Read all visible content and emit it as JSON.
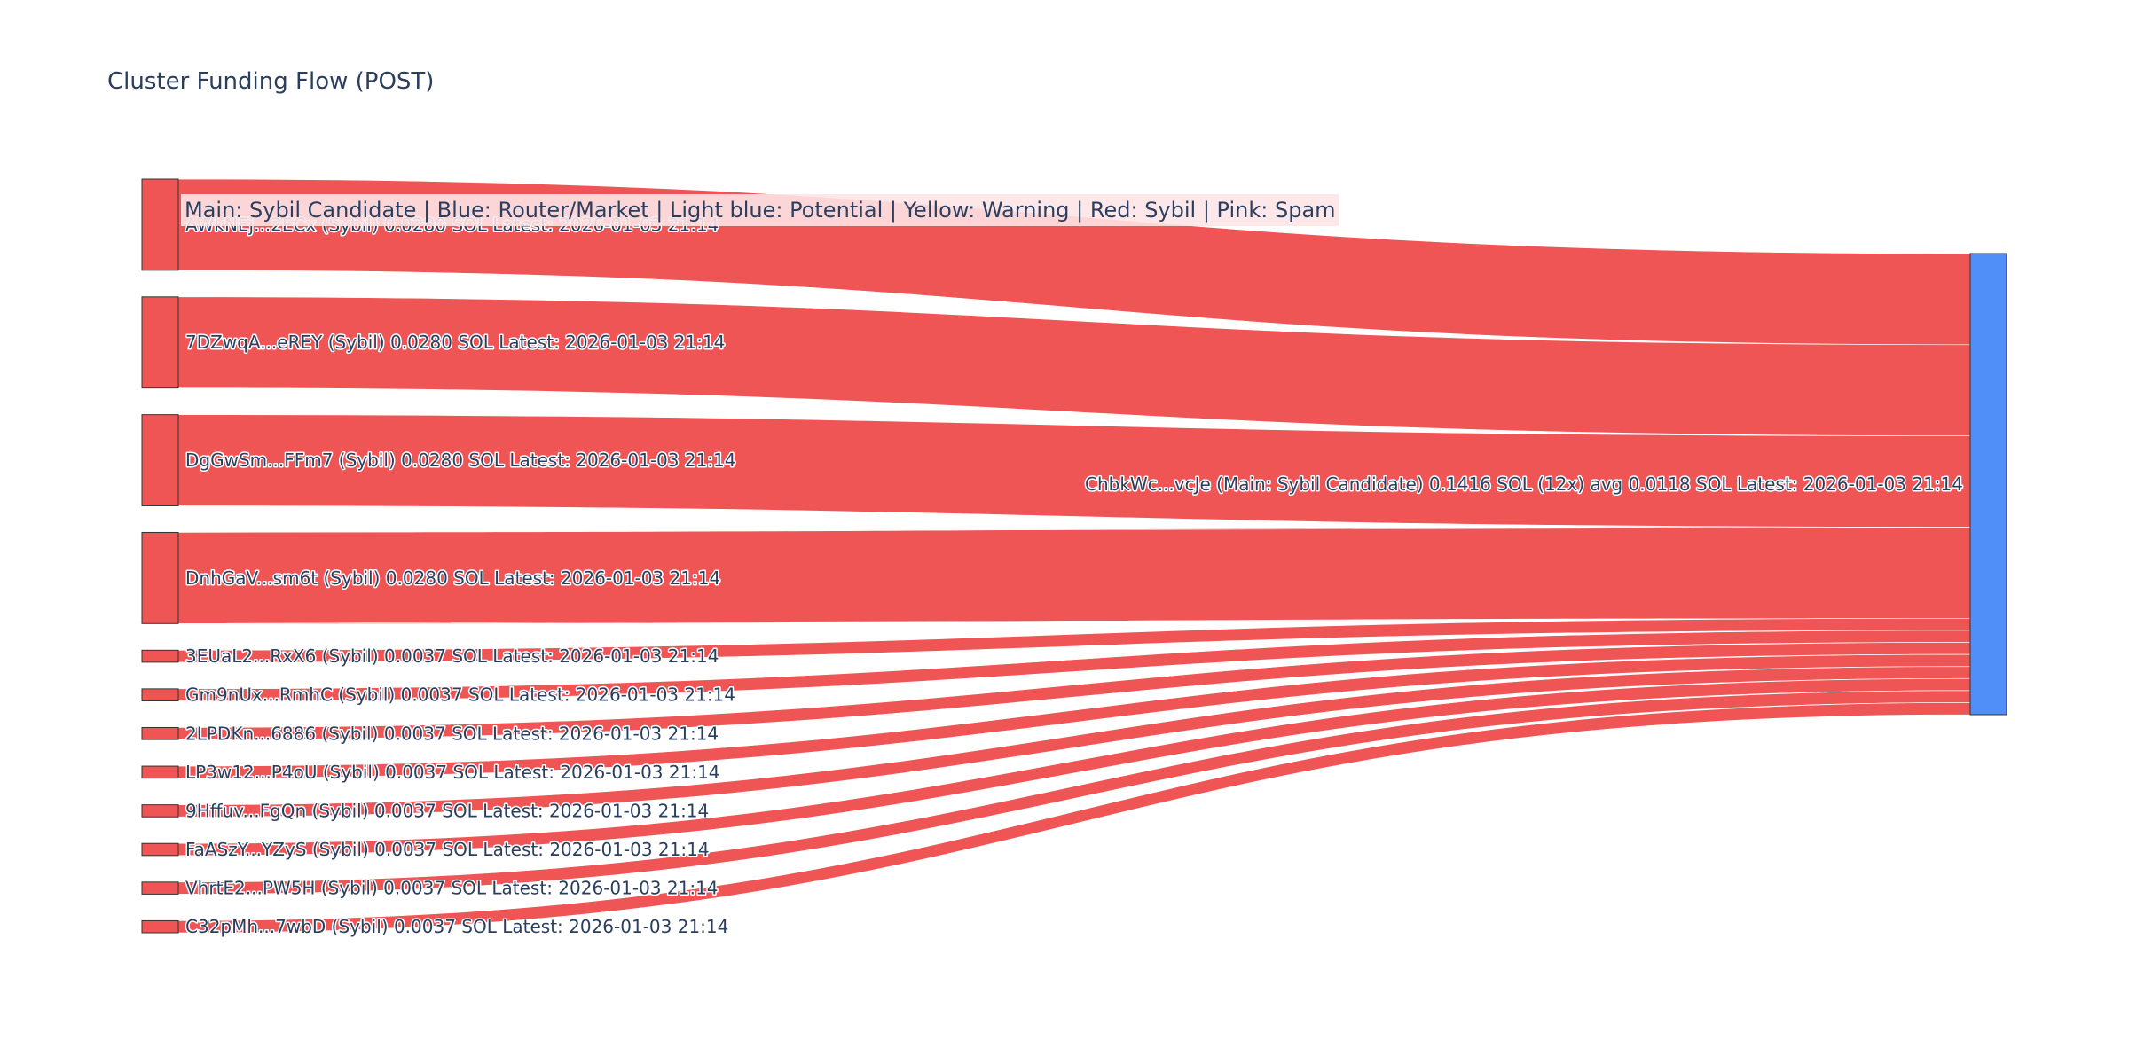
{
  "title": "Cluster Funding Flow (POST)",
  "legend": "Main: Sybil Candidate  |  Blue: Router/Market | Light blue: Potential | Yellow: Warning | Red: Sybil | Pink: Spam",
  "colors": {
    "link": "#ef5555",
    "source_node": "#ef5555",
    "target_node": "#4f8ff7",
    "node_border": "#333333",
    "legend_bg": "#fde4e6"
  },
  "chart_data": {
    "type": "sankey",
    "title": "Cluster Funding Flow (POST)",
    "unit": "SOL",
    "target": {
      "id": "ChbkWc...vcJe",
      "label": "ChbkWc...vcJe (Main: Sybil Candidate) 0.1416 SOL (12x) avg 0.0118 SOL Latest: 2026-01-03 21:14",
      "value": 0.1416
    },
    "sources": [
      {
        "id": "AWkNEj...2ECx",
        "label": "AWkNEj...2ECx (Sybil) 0.0280 SOL Latest: 2026-01-03 21:14",
        "value": 0.028
      },
      {
        "id": "7DZwqA...eREY",
        "label": "7DZwqA...eREY (Sybil) 0.0280 SOL Latest: 2026-01-03 21:14",
        "value": 0.028
      },
      {
        "id": "DgGwSm...FFm7",
        "label": "DgGwSm...FFm7 (Sybil) 0.0280 SOL Latest: 2026-01-03 21:14",
        "value": 0.028
      },
      {
        "id": "DnhGaV...sm6t",
        "label": "DnhGaV...sm6t (Sybil) 0.0280 SOL Latest: 2026-01-03 21:14",
        "value": 0.028
      },
      {
        "id": "3EUaL2...RxX6",
        "label": "3EUaL2...RxX6 (Sybil) 0.0037 SOL Latest: 2026-01-03 21:14",
        "value": 0.0037
      },
      {
        "id": "Gm9nUx...RmhC",
        "label": "Gm9nUx...RmhC (Sybil) 0.0037 SOL Latest: 2026-01-03 21:14",
        "value": 0.0037
      },
      {
        "id": "2LPDKn...6886",
        "label": "2LPDKn...6886 (Sybil) 0.0037 SOL Latest: 2026-01-03 21:14",
        "value": 0.0037
      },
      {
        "id": "LP3w12...P4oU",
        "label": "LP3w12...P4oU (Sybil) 0.0037 SOL Latest: 2026-01-03 21:14",
        "value": 0.0037
      },
      {
        "id": "9Hffuv...FgQn",
        "label": "9Hffuv...FgQn (Sybil) 0.0037 SOL Latest: 2026-01-03 21:14",
        "value": 0.0037
      },
      {
        "id": "FaASzY...YZyS",
        "label": "FaASzY...YZyS (Sybil) 0.0037 SOL Latest: 2026-01-03 21:14",
        "value": 0.0037
      },
      {
        "id": "VhrtE2...PW5H",
        "label": "VhrtE2...PW5H (Sybil) 0.0037 SOL Latest: 2026-01-03 21:14",
        "value": 0.0037
      },
      {
        "id": "C32pMh...7wbD",
        "label": "C32pMh...7wbD (Sybil) 0.0037 SOL Latest: 2026-01-03 21:14",
        "value": 0.0037
      }
    ]
  }
}
